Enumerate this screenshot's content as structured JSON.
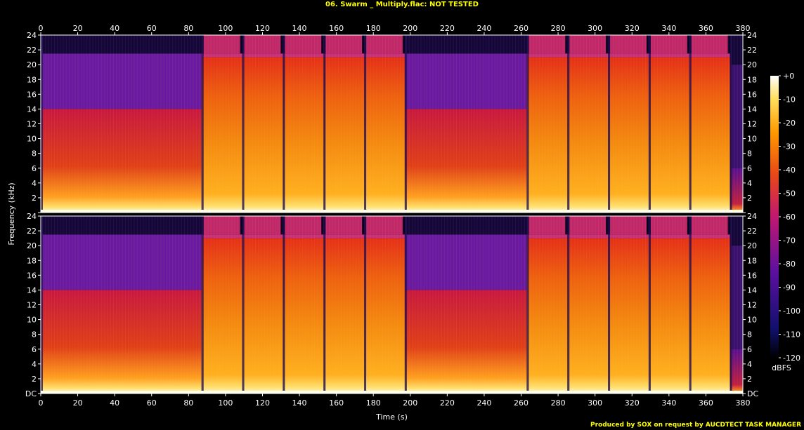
{
  "title": "06. Swarm _ Multiply.flac: NOT TESTED",
  "footer": "Produced by SOX on request by AUCDTECT TASK MANAGER",
  "colors": {
    "background": "#000000",
    "title": "#ffff00",
    "axis": "#ffffff"
  },
  "chart_data": {
    "type": "heatmap",
    "subtype": "spectrogram",
    "channels": 2,
    "xlabel": "Time (s)",
    "ylabel": "Frequency (kHz)",
    "colorbar_label": "dBFS",
    "xlim": [
      0,
      380
    ],
    "ylim_khz": [
      0,
      24
    ],
    "x_ticks": [
      "0",
      "20",
      "40",
      "60",
      "80",
      "100",
      "120",
      "140",
      "160",
      "180",
      "200",
      "220",
      "240",
      "260",
      "280",
      "300",
      "320",
      "340",
      "360",
      "380"
    ],
    "y_ticks": [
      "DC",
      "2",
      "4",
      "6",
      "8",
      "10",
      "12",
      "14",
      "16",
      "18",
      "20",
      "22",
      "24"
    ],
    "colorbar_ticks": [
      "+0",
      "-10",
      "-20",
      "-30",
      "-40",
      "-50",
      "-60",
      "-70",
      "-80",
      "-90",
      "-100",
      "-110",
      "-120"
    ],
    "colorbar_range_db": [
      -120,
      0
    ],
    "segments": [
      {
        "start": 0,
        "end": 87,
        "cutoff_khz": 21.5,
        "body_khz": 14,
        "level": "medium"
      },
      {
        "start": 87,
        "end": 109,
        "cutoff_khz": 21.5,
        "body_khz": 21,
        "level": "high"
      },
      {
        "start": 109,
        "end": 131,
        "cutoff_khz": 21.5,
        "body_khz": 21,
        "level": "high"
      },
      {
        "start": 131,
        "end": 153,
        "cutoff_khz": 21.5,
        "body_khz": 21,
        "level": "high"
      },
      {
        "start": 153,
        "end": 175,
        "cutoff_khz": 21.5,
        "body_khz": 21,
        "level": "high"
      },
      {
        "start": 175,
        "end": 197,
        "cutoff_khz": 21.5,
        "body_khz": 21,
        "level": "high"
      },
      {
        "start": 197,
        "end": 263,
        "cutoff_khz": 21.5,
        "body_khz": 14,
        "level": "medium"
      },
      {
        "start": 263,
        "end": 285,
        "cutoff_khz": 21.5,
        "body_khz": 21,
        "level": "high"
      },
      {
        "start": 285,
        "end": 307,
        "cutoff_khz": 21.5,
        "body_khz": 21,
        "level": "high"
      },
      {
        "start": 307,
        "end": 329,
        "cutoff_khz": 21.5,
        "body_khz": 21,
        "level": "high"
      },
      {
        "start": 329,
        "end": 351,
        "cutoff_khz": 21.5,
        "body_khz": 21,
        "level": "high"
      },
      {
        "start": 351,
        "end": 373,
        "cutoff_khz": 21.5,
        "body_khz": 21,
        "level": "high"
      },
      {
        "start": 373,
        "end": 380,
        "cutoff_khz": 20,
        "body_khz": 6,
        "level": "low"
      }
    ]
  }
}
